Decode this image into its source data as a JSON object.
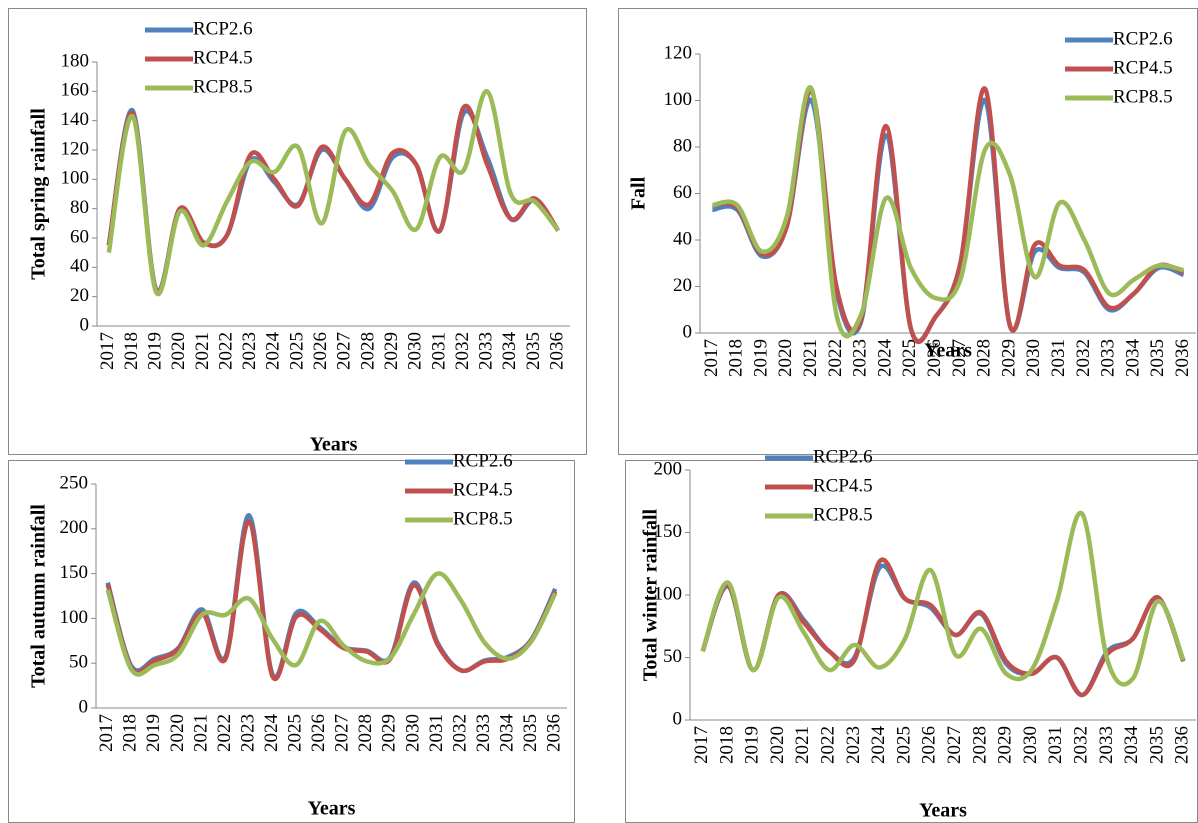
{
  "chart_data": [
    {
      "type": "line",
      "y_label": "Total spring rainfall",
      "x_label": "Years",
      "categories": [
        "2017",
        "2018",
        "2019",
        "2020",
        "2021",
        "2022",
        "2023",
        "2024",
        "2025",
        "2026",
        "2027",
        "2028",
        "2029",
        "2030",
        "2031",
        "2032",
        "2033",
        "2034",
        "2035",
        "2036"
      ],
      "ylim": [
        0,
        180
      ],
      "yticks": [
        0,
        20,
        40,
        60,
        80,
        100,
        120,
        140,
        160,
        180
      ],
      "legend": "upper left",
      "series": [
        {
          "name": "RCP2.6",
          "color": "#4f81bd",
          "values": [
            55,
            147,
            25,
            80,
            57,
            62,
            113,
            98,
            83,
            120,
            100,
            80,
            115,
            110,
            65,
            145,
            115,
            73,
            86,
            65
          ]
        },
        {
          "name": "RCP4.5",
          "color": "#c0504d",
          "values": [
            55,
            145,
            24,
            80,
            57,
            62,
            117,
            100,
            82,
            122,
            100,
            83,
            118,
            110,
            65,
            149,
            110,
            73,
            87,
            65
          ]
        },
        {
          "name": "RCP8.5",
          "color": "#9bbb59",
          "values": [
            50,
            143,
            23,
            78,
            55,
            85,
            112,
            105,
            122,
            70,
            133,
            110,
            92,
            66,
            115,
            106,
            160,
            90,
            85,
            65
          ]
        }
      ]
    },
    {
      "type": "line",
      "y_label": "Fall",
      "x_label": "Years",
      "categories": [
        "2017",
        "2018",
        "2019",
        "2020",
        "2021",
        "2022",
        "2023",
        "2024",
        "2025",
        "2026",
        "2027",
        "2028",
        "2029",
        "2030",
        "2031",
        "2032",
        "2033",
        "2034",
        "2035",
        "2036"
      ],
      "ylim": [
        0,
        120
      ],
      "yticks": [
        0,
        20,
        40,
        60,
        80,
        100,
        120
      ],
      "legend": "upper right",
      "series": [
        {
          "name": "RCP2.6",
          "color": "#4f81bd",
          "values": [
            53,
            53,
            33,
            46,
            100,
            18,
            5,
            85,
            2,
            7,
            30,
            100,
            3,
            35,
            28,
            26,
            10,
            17,
            28,
            25
          ]
        },
        {
          "name": "RCP4.5",
          "color": "#c0504d",
          "values": [
            55,
            54,
            34,
            46,
            104,
            20,
            6,
            89,
            2,
            7,
            30,
            105,
            3,
            38,
            29,
            27,
            11,
            17,
            29,
            26
          ]
        },
        {
          "name": "RCP8.5",
          "color": "#9bbb59",
          "values": [
            55,
            55,
            35,
            50,
            105,
            8,
            8,
            58,
            28,
            15,
            23,
            79,
            68,
            24,
            56,
            40,
            17,
            23,
            29,
            27
          ]
        }
      ]
    },
    {
      "type": "line",
      "y_label": "Total autumn rainfall",
      "x_label": "Years",
      "categories": [
        "2017",
        "2018",
        "2019",
        "2020",
        "2021",
        "2022",
        "2023",
        "2024",
        "2025",
        "2026",
        "2027",
        "2028",
        "2029",
        "2030",
        "2031",
        "2032",
        "2033",
        "2034",
        "2035",
        "2036"
      ],
      "ylim": [
        0,
        250
      ],
      "yticks": [
        0,
        50,
        100,
        150,
        200,
        250
      ],
      "legend": "upper right",
      "series": [
        {
          "name": "RCP2.6",
          "color": "#4f81bd",
          "values": [
            140,
            47,
            55,
            67,
            110,
            57,
            215,
            37,
            106,
            90,
            68,
            64,
            57,
            140,
            73,
            42,
            53,
            57,
            77,
            133
          ]
        },
        {
          "name": "RCP4.5",
          "color": "#c0504d",
          "values": [
            138,
            45,
            53,
            66,
            106,
            55,
            208,
            35,
            102,
            88,
            67,
            63,
            55,
            137,
            71,
            42,
            52,
            55,
            76,
            130
          ]
        },
        {
          "name": "RCP8.5",
          "color": "#9bbb59",
          "values": [
            132,
            43,
            48,
            60,
            104,
            104,
            122,
            77,
            48,
            97,
            70,
            52,
            56,
            105,
            150,
            120,
            73,
            55,
            75,
            128
          ]
        }
      ]
    },
    {
      "type": "line",
      "y_label": "Total winter rainfall",
      "x_label": "Years",
      "categories": [
        "2017",
        "2018",
        "2019",
        "2020",
        "2021",
        "2022",
        "2023",
        "2024",
        "2025",
        "2026",
        "2027",
        "2028",
        "2029",
        "2030",
        "2031",
        "2032",
        "2033",
        "2034",
        "2035",
        "2036"
      ],
      "ylim": [
        0,
        200
      ],
      "yticks": [
        0,
        50,
        100,
        150,
        200
      ],
      "legend": "upper left",
      "series": [
        {
          "name": "RCP2.6",
          "color": "#4f81bd",
          "values": [
            55,
            107,
            40,
            100,
            80,
            55,
            50,
            122,
            97,
            90,
            68,
            85,
            45,
            37,
            50,
            20,
            55,
            65,
            98,
            47
          ]
        },
        {
          "name": "RCP4.5",
          "color": "#c0504d",
          "values": [
            55,
            108,
            40,
            100,
            78,
            55,
            48,
            127,
            97,
            92,
            68,
            86,
            47,
            37,
            50,
            20,
            53,
            65,
            98,
            47
          ]
        },
        {
          "name": "RCP8.5",
          "color": "#9bbb59",
          "values": [
            55,
            110,
            40,
            98,
            70,
            40,
            60,
            42,
            65,
            120,
            52,
            73,
            37,
            40,
            95,
            165,
            48,
            33,
            95,
            48
          ]
        }
      ]
    }
  ]
}
